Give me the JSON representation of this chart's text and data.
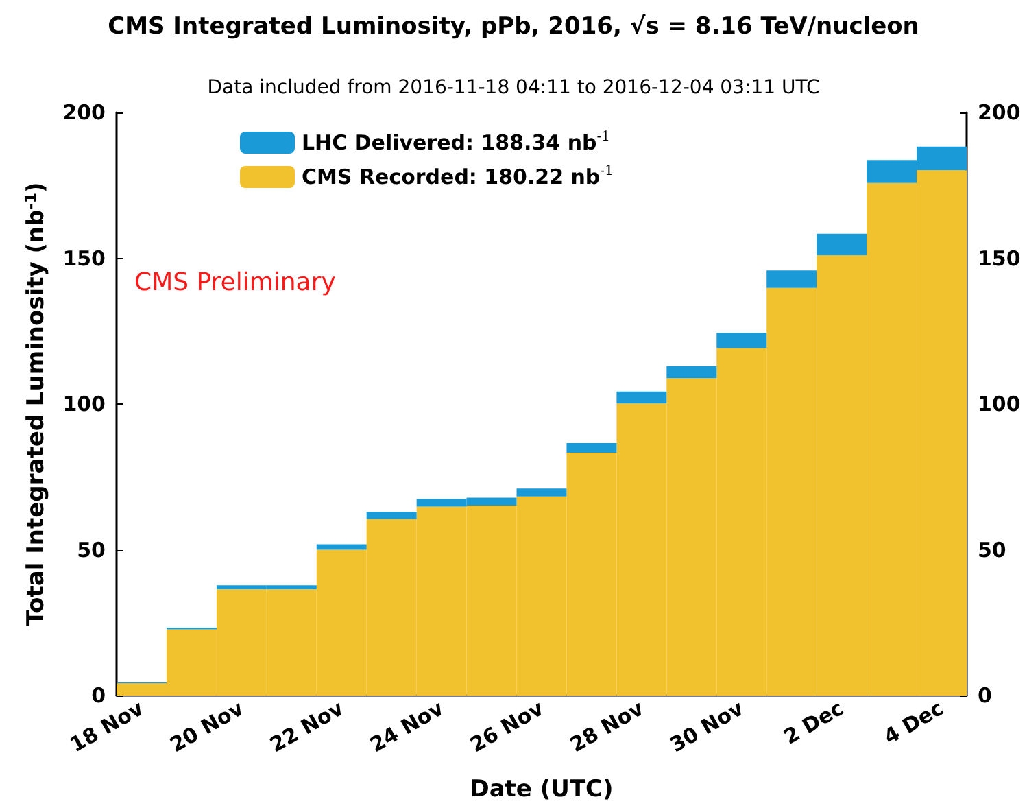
{
  "chart_data": {
    "type": "bar",
    "title": "CMS Integrated Luminosity, pPb, 2016, √s = 8.16 TeV/nucleon",
    "subtitle": "Data included from 2016-11-18 04:11 to 2016-12-04 03:11 UTC",
    "xlabel": "Date (UTC)",
    "ylabel": "Total Integrated Luminosity (nb$^{-1}$)",
    "categories": [
      "18 Nov",
      null,
      "20 Nov",
      null,
      "22 Nov",
      null,
      "24 Nov",
      null,
      "26 Nov",
      null,
      "28 Nov",
      null,
      "30 Nov",
      null,
      "2 Dec",
      null,
      "4 Dec"
    ],
    "stacked": true,
    "series": [
      {
        "name": "CMS Recorded: 180.22 nb$^{-1}$",
        "color": "#f2c12e",
        "values": [
          4.2,
          22.7,
          36.5,
          36.5,
          50.0,
          60.6,
          64.8,
          65.2,
          68.3,
          83.3,
          100.2,
          108.9,
          119.2,
          139.8,
          151.0,
          175.8,
          180.2
        ]
      },
      {
        "name": "LHC Delivered: 188.34 nb$^{-1}$",
        "color": "#1a9bd7",
        "values": [
          0.3,
          0.6,
          1.3,
          1.3,
          1.9,
          2.4,
          2.7,
          2.7,
          2.7,
          3.3,
          4.1,
          4.1,
          5.2,
          6.0,
          7.4,
          7.9,
          8.1
        ]
      }
    ],
    "ylim": [
      0,
      200
    ],
    "yticks": [
      0,
      50,
      100,
      150,
      200
    ],
    "y2lim": [
      0,
      200
    ],
    "y2ticks": [
      0,
      50,
      100,
      150,
      200
    ],
    "annotations": [
      "CMS Preliminary"
    ],
    "grid": false,
    "legend": "top left"
  }
}
